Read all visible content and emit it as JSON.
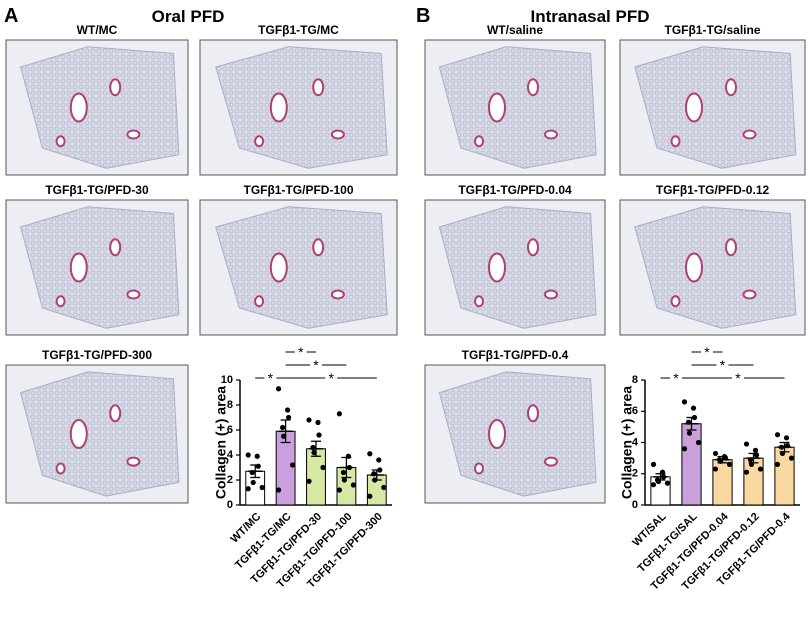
{
  "panels": [
    {
      "label": "A",
      "title": "Oral PFD",
      "images": [
        {
          "caption": "WT/MC"
        },
        {
          "caption": "TGFβ1-TG/MC"
        },
        {
          "caption": "TGFβ1-TG/PFD-30"
        },
        {
          "caption": "TGFβ1-TG/PFD-100"
        },
        {
          "caption": "TGFβ1-TG/PFD-300"
        }
      ]
    },
    {
      "label": "B",
      "title": "Intranasal PFD",
      "images": [
        {
          "caption": "WT/saline"
        },
        {
          "caption": "TGFβ1-TG/saline"
        },
        {
          "caption": "TGFβ1-TG/PFD-0.04"
        },
        {
          "caption": "TGFβ1-TG/PFD-0.12"
        },
        {
          "caption": "TGFβ1-TG/PFD-0.4"
        }
      ]
    }
  ],
  "chart_data": [
    {
      "type": "bar",
      "y_label": "Collagen (+) area",
      "categories": [
        "WT/MC",
        "TGFβ1-TG/MC",
        "TGFβ1-TG/PFD-30",
        "TGFβ1-TG/PFD-100",
        "TGFβ1-TG/PFD-300"
      ],
      "values": [
        2.7,
        5.9,
        4.5,
        3.0,
        2.4
      ],
      "errors": [
        0.5,
        0.9,
        0.6,
        0.8,
        0.4
      ],
      "colors": [
        "#ffffff",
        "#c9a0dc",
        "#d5e8a4",
        "#d5e8a4",
        "#d5e8a4"
      ],
      "points": [
        [
          4.0,
          3.9,
          3.1,
          2.6,
          1.8,
          1.4,
          1.3
        ],
        [
          9.3,
          7.6,
          7.0,
          6.2,
          5.5,
          3.2,
          1.2
        ],
        [
          6.8,
          6.6,
          5.6,
          4.6,
          4.2,
          3.0,
          1.9
        ],
        [
          7.3,
          3.9,
          3.0,
          2.6,
          2.0,
          1.6,
          1.2
        ],
        [
          4.1,
          3.6,
          2.8,
          2.5,
          2.0,
          1.4,
          0.7
        ]
      ],
      "ylim": [
        0,
        10
      ],
      "yticks": [
        0,
        2,
        4,
        6,
        8,
        10
      ],
      "significance": [
        {
          "from": 1,
          "to": 2,
          "label": "*"
        },
        {
          "from": 1,
          "to": 3,
          "label": "*"
        },
        {
          "from": 0,
          "to": 1,
          "label": "*"
        },
        {
          "from": 1,
          "to": 4,
          "label": "*"
        }
      ]
    },
    {
      "type": "bar",
      "y_label": "Collagen (+) area",
      "categories": [
        "WT/SAL",
        "TGFβ1-TG/SAL",
        "TGFβ1-TG/PFD-0.04",
        "TGFβ1-TG/PFD-0.12",
        "TGFβ1-TG/PFD-0.4"
      ],
      "values": [
        1.8,
        5.2,
        2.9,
        3.0,
        3.7
      ],
      "errors": [
        0.2,
        0.4,
        0.2,
        0.3,
        0.3
      ],
      "colors": [
        "#ffffff",
        "#c9a0dc",
        "#f9d9a0",
        "#f9d9a0",
        "#f9d9a0"
      ],
      "points": [
        [
          2.6,
          2.1,
          1.8,
          1.6,
          1.5,
          1.4,
          1.3
        ],
        [
          6.6,
          6.2,
          5.6,
          5.3,
          4.6,
          4.0,
          3.6
        ],
        [
          3.3,
          3.1,
          3.0,
          2.9,
          2.8,
          2.6,
          2.3
        ],
        [
          3.9,
          3.5,
          3.2,
          2.9,
          2.6,
          2.3,
          2.1
        ],
        [
          4.5,
          4.3,
          3.8,
          3.7,
          3.3,
          3.0,
          2.6
        ]
      ],
      "ylim": [
        0,
        8
      ],
      "yticks": [
        0,
        2,
        4,
        6,
        8
      ],
      "significance": [
        {
          "from": 1,
          "to": 2,
          "label": "*"
        },
        {
          "from": 1,
          "to": 3,
          "label": "*"
        },
        {
          "from": 0,
          "to": 1,
          "label": "*"
        },
        {
          "from": 1,
          "to": 4,
          "label": "*"
        }
      ]
    }
  ]
}
